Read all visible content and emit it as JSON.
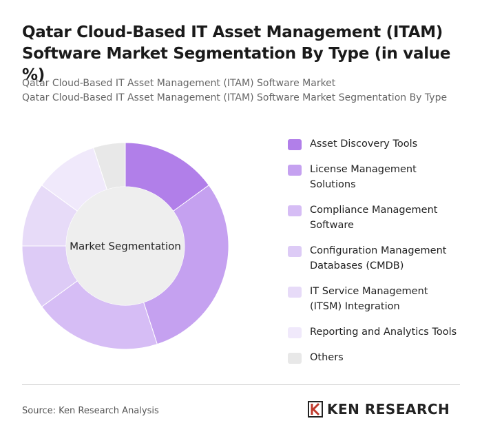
{
  "chart_data": {
    "type": "donut",
    "title": "Qatar Cloud-Based IT Asset Management (ITAM) Software Market Segmentation By Type (in value %)",
    "subtitle_lines": [
      "Qatar Cloud-Based IT Asset Management (ITAM) Software Market",
      "Qatar Cloud-Based IT Asset Management (ITAM) Software Market Segmentation By Type"
    ],
    "center_label": "Market Segmentation",
    "categories": [
      "Asset Discovery Tools",
      "License Management Solutions",
      "Compliance Management Software",
      "Configuration Management Databases (CMDB)",
      "IT Service Management (ITSM) Integration",
      "Reporting and Analytics Tools",
      "Others"
    ],
    "values": [
      15,
      30,
      20,
      10,
      10,
      10,
      5
    ],
    "colors": [
      "#b17fe9",
      "#c5a1f0",
      "#d6bdf5",
      "#ddcbf6",
      "#e7dbf8",
      "#f0e9fb",
      "#e8e8e8"
    ],
    "source": "Source: Ken Research Analysis",
    "brand": "KEN RESEARCH"
  }
}
